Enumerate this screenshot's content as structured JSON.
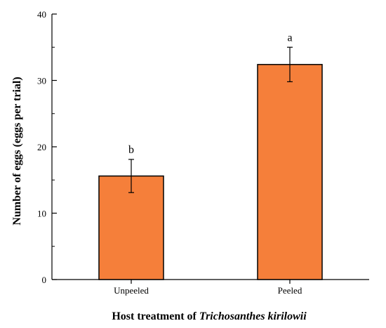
{
  "chart_data": {
    "type": "bar",
    "categories": [
      "Unpeeled",
      "Peeled"
    ],
    "values": [
      15.6,
      32.4
    ],
    "errors": [
      2.5,
      2.6
    ],
    "significance_labels": [
      "b",
      "a"
    ],
    "xlabel_prefix": "Host treatment of ",
    "xlabel_italic": "Trichosanthes kirilowii",
    "ylabel": "Number of eggs (eggs per trial)",
    "ylim": [
      0,
      40
    ],
    "yticks": [
      0,
      10,
      20,
      30,
      40
    ],
    "grid": false,
    "bar_color": "#f57f3a",
    "edge_color": "#000000"
  }
}
